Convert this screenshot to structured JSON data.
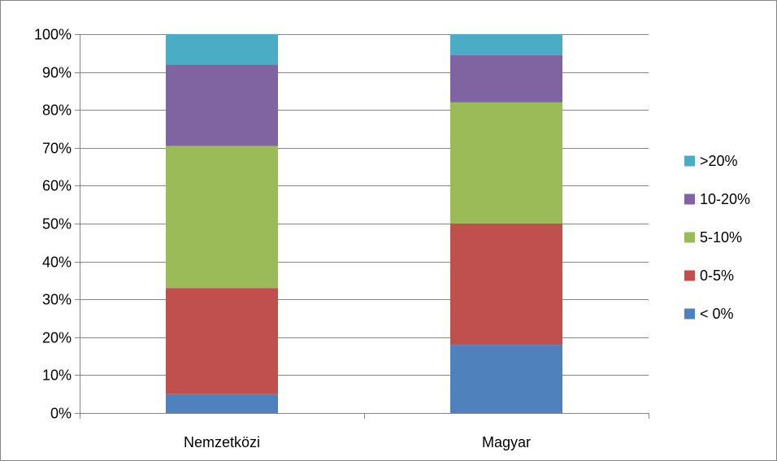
{
  "chart_data": {
    "type": "bar",
    "stacked": true,
    "percent_stacked": true,
    "categories": [
      "Nemzetközi",
      "Magyar"
    ],
    "series": [
      {
        "name": "< 0%",
        "color": "#4F81BD",
        "values": [
          5,
          18
        ]
      },
      {
        "name": "0-5%",
        "color": "#C0504D",
        "values": [
          28,
          32
        ]
      },
      {
        "name": "5-10%",
        "color": "#9BBB59",
        "values": [
          37.5,
          32
        ]
      },
      {
        "name": "10-20%",
        "color": "#8064A2",
        "values": [
          21.5,
          12.5
        ]
      },
      {
        "name": ">20%",
        "color": "#4BACC6",
        "values": [
          8,
          5.5
        ]
      }
    ],
    "ylim": [
      0,
      100
    ],
    "yticks": [
      0,
      10,
      20,
      30,
      40,
      50,
      60,
      70,
      80,
      90,
      100
    ],
    "ytick_labels": [
      "0%",
      "10%",
      "20%",
      "30%",
      "40%",
      "50%",
      "60%",
      "70%",
      "80%",
      "90%",
      "100%"
    ],
    "grid": true,
    "legend_position": "right",
    "legend_order": [
      ">20%",
      "10-20%",
      "5-10%",
      "0-5%",
      "< 0%"
    ]
  }
}
